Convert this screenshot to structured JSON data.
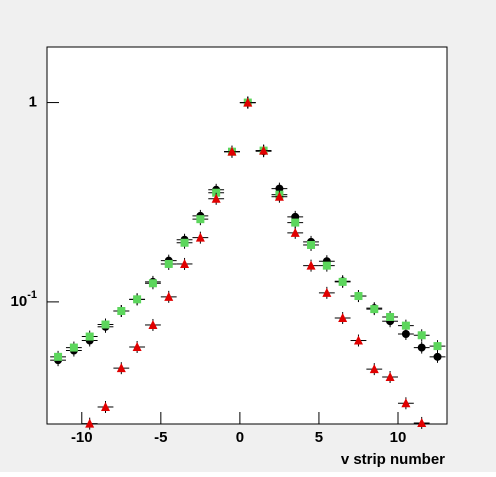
{
  "chart_data": {
    "type": "scatter",
    "x": [
      -11.5,
      -10.5,
      -9.5,
      -8.5,
      -7.5,
      -6.5,
      -5.5,
      -4.5,
      -3.5,
      -2.5,
      -1.5,
      -0.5,
      0.5,
      1.5,
      2.5,
      3.5,
      4.5,
      5.5,
      6.5,
      7.5,
      8.5,
      9.5,
      10.5,
      11.5,
      12.5
    ],
    "series": [
      {
        "color": "#000000",
        "marker": "circle",
        "values": [
          0.051,
          0.057,
          0.064,
          0.075,
          0.09,
          0.103,
          0.126,
          0.161,
          0.205,
          0.27,
          0.365,
          0.567,
          1.0,
          0.57,
          0.37,
          0.267,
          0.2,
          0.16,
          0.127,
          0.107,
          0.093,
          0.08,
          0.069,
          0.059,
          0.053
        ]
      },
      {
        "color": "#5cd65c",
        "marker": "square",
        "values": [
          0.053,
          0.059,
          0.067,
          0.077,
          0.09,
          0.103,
          0.124,
          0.155,
          0.198,
          0.26,
          0.353,
          0.567,
          1.0,
          0.574,
          0.345,
          0.25,
          0.193,
          0.152,
          0.126,
          0.107,
          0.092,
          0.084,
          0.076,
          0.068,
          0.06
        ]
      },
      {
        "color": "#e00000",
        "marker": "triangle",
        "values": [
          null,
          null,
          0.0245,
          0.0297,
          0.0465,
          0.0594,
          0.0766,
          0.106,
          0.155,
          0.21,
          0.329,
          0.567,
          1.0,
          0.574,
          0.337,
          0.222,
          0.152,
          0.111,
          0.083,
          0.064,
          0.046,
          0.042,
          0.031,
          0.0247,
          null
        ]
      }
    ],
    "xlabel": "v strip number",
    "xlim": [
      -12.2,
      13.1
    ],
    "xticks": [
      -10,
      -5,
      0,
      5,
      10
    ],
    "ylim": [
      0.0244,
      1.9
    ],
    "yticks": [
      1,
      {
        "value": 0.1,
        "label": "10-1"
      }
    ],
    "log_y": true
  }
}
